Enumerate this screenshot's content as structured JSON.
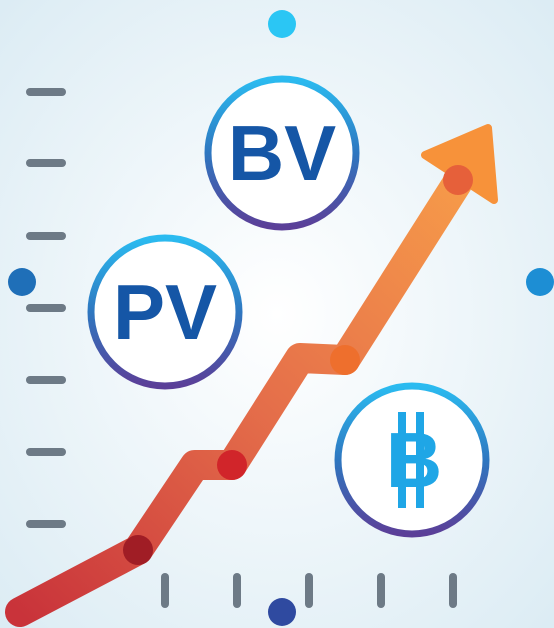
{
  "badges": [
    {
      "label": "BV"
    },
    {
      "label": "PV"
    },
    {
      "label": "B"
    }
  ]
}
